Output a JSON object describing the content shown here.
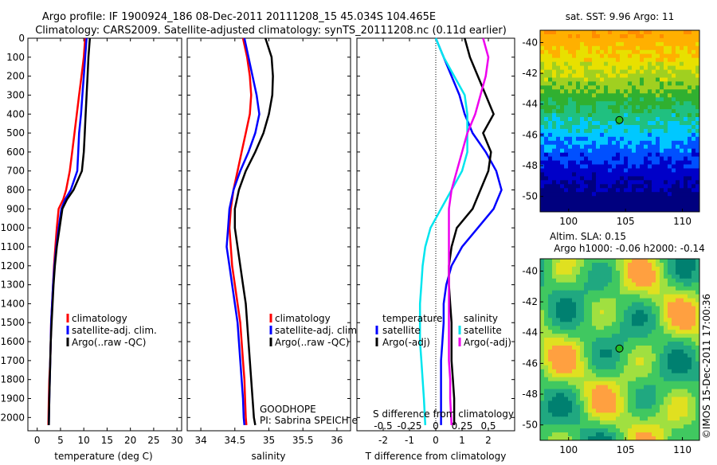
{
  "header": {
    "line1": "Argo profile: IF 1900924_186 08-Dec-2011 20111208_15 45.034S 104.465E",
    "line2": "Climatology: CARS2009. Satellite-adjusted climatology: synTS_20111208.nc (0.11d earlier)"
  },
  "credit": "©IMOS 15-Dec-2011 17:00:36",
  "goodhope": {
    "line1": "GOODHOPE",
    "line2": "PI: Sabrina SPEICH et Michel ARHAN"
  },
  "colors": {
    "climatology": "#ff0000",
    "satellite": "#0000ff",
    "argo": "#000000",
    "cyan": "#00e5ee",
    "magenta": "#ee00ee"
  },
  "chart_data": [
    {
      "type": "line",
      "xlabel": "temperature (deg C)",
      "ylabel": "",
      "xlim": [
        -2,
        31
      ],
      "ylim": [
        2070,
        0
      ],
      "xticks": [
        "0",
        "5",
        "10",
        "15",
        "20",
        "25",
        "30"
      ],
      "yticks": [
        "0",
        "100",
        "200",
        "300",
        "400",
        "500",
        "600",
        "700",
        "800",
        "900",
        "1000",
        "1100",
        "1200",
        "1300",
        "1400",
        "1500",
        "1600",
        "1700",
        "1800",
        "1900",
        "2000"
      ],
      "legend": {
        "placement": "lower-center",
        "entries": [
          "climatology",
          "satellite-adj. clim.",
          "Argo(..raw -QC)"
        ]
      },
      "series": [
        {
          "name": "climatology",
          "color": "#ff0000",
          "x": [
            10.3,
            10.0,
            9.5,
            9.0,
            8.5,
            8.0,
            7.5,
            7.0,
            6.2,
            5.6,
            4.6,
            4.2,
            3.9,
            3.6,
            3.4,
            3.2,
            3.0,
            2.9,
            2.8,
            2.6,
            2.5,
            2.4
          ],
          "y": [
            0,
            100,
            200,
            300,
            400,
            500,
            600,
            700,
            800,
            850,
            900,
            1000,
            1100,
            1200,
            1300,
            1400,
            1500,
            1600,
            1700,
            1800,
            1900,
            2040
          ]
        },
        {
          "name": "satellite-adj. clim.",
          "color": "#0000ff",
          "x": [
            10.6,
            10.3,
            10.0,
            9.7,
            9.4,
            9.0,
            8.8,
            8.6,
            7.2,
            6.0,
            5.2,
            4.6,
            4.1,
            3.7,
            3.4,
            3.2,
            3.0,
            2.9,
            2.8,
            2.7,
            2.6,
            2.5
          ],
          "y": [
            0,
            100,
            200,
            300,
            400,
            500,
            600,
            700,
            800,
            850,
            900,
            1000,
            1100,
            1200,
            1300,
            1400,
            1500,
            1600,
            1700,
            1800,
            1900,
            2040
          ]
        },
        {
          "name": "Argo(..raw -QC)",
          "color": "#000000",
          "x": [
            11.3,
            11.0,
            10.8,
            10.6,
            10.4,
            10.2,
            10.0,
            9.6,
            7.8,
            6.4,
            5.4,
            4.8,
            4.2,
            3.8,
            3.5,
            3.3,
            3.1,
            2.9,
            2.8,
            2.7,
            2.6,
            2.5
          ],
          "y": [
            0,
            100,
            200,
            300,
            400,
            500,
            600,
            700,
            800,
            850,
            900,
            1000,
            1100,
            1200,
            1300,
            1400,
            1500,
            1600,
            1700,
            1800,
            1900,
            2040
          ]
        }
      ]
    },
    {
      "type": "line",
      "xlabel": "salinity",
      "xlim": [
        33.8,
        36.2
      ],
      "ylim": [
        2070,
        0
      ],
      "xticks": [
        "34",
        "34.5",
        "35",
        "35.5",
        "36"
      ],
      "legend": {
        "placement": "lower-right",
        "entries": [
          "climatology",
          "satellite-adj. clim.",
          "Argo(..raw -QC)"
        ]
      },
      "series": [
        {
          "name": "climatology",
          "color": "#ff0000",
          "x": [
            34.62,
            34.68,
            34.72,
            34.74,
            34.72,
            34.66,
            34.6,
            34.54,
            34.48,
            34.44,
            34.42,
            34.44,
            34.46,
            34.5,
            34.54,
            34.58,
            34.6,
            34.62,
            34.64,
            34.65,
            34.66,
            34.67,
            34.67
          ],
          "y": [
            0,
            100,
            200,
            300,
            400,
            500,
            600,
            700,
            800,
            900,
            1000,
            1100,
            1200,
            1300,
            1400,
            1500,
            1600,
            1700,
            1800,
            1900,
            2000,
            2040,
            2040
          ]
        },
        {
          "name": "satellite-adj. clim.",
          "color": "#0000ff",
          "x": [
            34.64,
            34.7,
            34.76,
            34.82,
            34.86,
            34.8,
            34.7,
            34.58,
            34.48,
            34.42,
            34.4,
            34.38,
            34.42,
            34.46,
            34.5,
            34.54,
            34.56,
            34.58,
            34.6,
            34.62,
            34.63,
            34.64,
            34.64
          ],
          "y": [
            0,
            100,
            200,
            300,
            400,
            500,
            600,
            700,
            800,
            900,
            1000,
            1100,
            1200,
            1300,
            1400,
            1500,
            1600,
            1700,
            1800,
            1900,
            2000,
            2040,
            2040
          ]
        },
        {
          "name": "Argo(..raw -QC)",
          "color": "#000000",
          "x": [
            34.95,
            35.04,
            35.06,
            35.05,
            35.0,
            34.92,
            34.8,
            34.66,
            34.56,
            34.5,
            34.5,
            34.54,
            34.58,
            34.62,
            34.66,
            34.68,
            34.7,
            34.72,
            34.74,
            34.76,
            34.78,
            34.8,
            34.8
          ],
          "y": [
            0,
            100,
            200,
            300,
            400,
            500,
            600,
            700,
            800,
            900,
            1000,
            1100,
            1200,
            1300,
            1400,
            1500,
            1600,
            1700,
            1800,
            1900,
            2000,
            2040,
            2040
          ]
        }
      ]
    },
    {
      "type": "line",
      "xlabel": "T difference from climatology",
      "xlabel_top": "S difference from climatology",
      "xlim": [
        -3,
        3
      ],
      "ylim": [
        2070,
        0
      ],
      "xticks": [
        "-2",
        "-1",
        "0",
        "1",
        "2"
      ],
      "xticks_top": [
        "-0.5",
        "-0.25",
        "0",
        "0.25",
        "0.5"
      ],
      "legend": {
        "placement": "lower-center",
        "temperature_title": "temperature",
        "salinity_title": "salinity",
        "temperature_entries": [
          "satellite",
          "Argo(-adj)"
        ],
        "salinity_entries": [
          "satellite",
          "Argo(-adj)"
        ]
      },
      "series": [
        {
          "name": "satellite",
          "group": "temperature",
          "color": "#0000ff",
          "x": [
            0.0,
            0.3,
            0.6,
            0.9,
            1.1,
            1.4,
            1.9,
            2.3,
            2.5,
            2.2,
            1.6,
            1.0,
            0.6,
            0.4,
            0.3,
            0.3,
            0.25,
            0.2,
            0.2,
            0.2,
            0.2
          ],
          "y": [
            0,
            100,
            200,
            300,
            400,
            500,
            600,
            700,
            800,
            900,
            1000,
            1100,
            1200,
            1300,
            1400,
            1500,
            1600,
            1700,
            1800,
            1900,
            2040
          ]
        },
        {
          "name": "Argo(-adj)",
          "group": "temperature",
          "color": "#000000",
          "x": [
            1.1,
            1.3,
            1.6,
            1.9,
            2.2,
            1.8,
            2.1,
            2.0,
            1.7,
            1.4,
            0.8,
            0.6,
            0.5,
            0.5,
            0.55,
            0.6,
            0.6,
            0.6,
            0.65,
            0.7,
            0.7
          ],
          "y": [
            0,
            100,
            200,
            300,
            400,
            500,
            600,
            700,
            800,
            900,
            1000,
            1100,
            1200,
            1300,
            1400,
            1500,
            1600,
            1700,
            1800,
            1900,
            2040
          ]
        },
        {
          "name": "satellite",
          "group": "salinity",
          "color": "#00e5ee",
          "x": [
            0.0,
            0.3,
            0.7,
            1.1,
            1.2,
            1.2,
            1.2,
            1.0,
            0.6,
            0.2,
            -0.2,
            -0.4,
            -0.5,
            -0.55,
            -0.6,
            -0.6,
            -0.6,
            -0.55,
            -0.5,
            -0.45,
            -0.4
          ],
          "y": [
            0,
            100,
            200,
            300,
            400,
            500,
            600,
            700,
            800,
            900,
            1000,
            1100,
            1200,
            1300,
            1400,
            1500,
            1600,
            1700,
            1800,
            1900,
            2040
          ]
        },
        {
          "name": "Argo(-adj)",
          "group": "salinity",
          "color": "#ee00ee",
          "x": [
            1.8,
            2.0,
            1.9,
            1.7,
            1.5,
            1.2,
            1.0,
            0.8,
            0.6,
            0.5,
            0.5,
            0.5,
            0.5,
            0.5,
            0.5,
            0.5,
            0.5,
            0.5,
            0.55,
            0.55,
            0.6
          ],
          "y": [
            0,
            100,
            200,
            300,
            400,
            500,
            600,
            700,
            800,
            900,
            1000,
            1100,
            1200,
            1300,
            1400,
            1500,
            1600,
            1700,
            1800,
            1900,
            2040
          ]
        }
      ]
    },
    {
      "type": "heatmap",
      "title": "sat. SST: 9.96 Argo: 11",
      "xlim": [
        97.5,
        111.5
      ],
      "ylim": [
        -51,
        -39.2
      ],
      "xticks": [
        "100",
        "105",
        "110"
      ],
      "yticks": [
        "-40",
        "-42",
        "-44",
        "-46",
        "-48",
        "-50"
      ],
      "marker": {
        "lon": 104.465,
        "lat": -45.034
      }
    },
    {
      "type": "heatmap",
      "title": "Altim. SLA: 0.15",
      "subtitle": "Argo h1000: -0.06 h2000: -0.14",
      "xlim": [
        97.5,
        111.5
      ],
      "ylim": [
        -51,
        -39.2
      ],
      "xticks": [
        "100",
        "105",
        "110"
      ],
      "yticks": [
        "-40",
        "-42",
        "-44",
        "-46",
        "-48",
        "-50"
      ],
      "marker": {
        "lon": 104.465,
        "lat": -45.034
      }
    }
  ]
}
